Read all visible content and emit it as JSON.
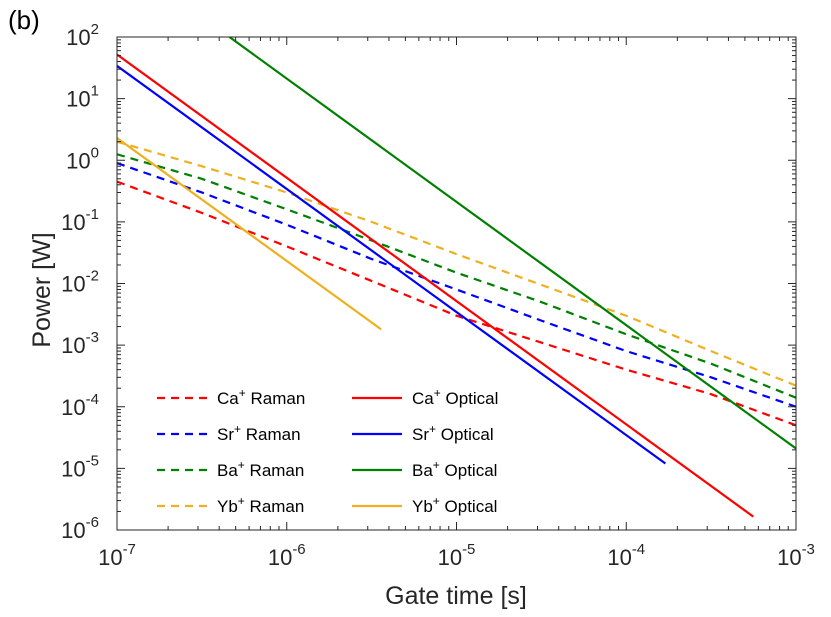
{
  "chart_data": {
    "type": "line",
    "panel_label": "(b)",
    "xlabel": "Gate time [s]",
    "ylabel": "Power [W]",
    "xscale": "log",
    "yscale": "log",
    "xlim": [
      1e-07,
      0.001
    ],
    "ylim": [
      1e-06,
      100
    ],
    "x_ticks": [
      {
        "base": "10",
        "exp": "-7",
        "value": 1e-07
      },
      {
        "base": "10",
        "exp": "-6",
        "value": 1e-06
      },
      {
        "base": "10",
        "exp": "-5",
        "value": 1e-05
      },
      {
        "base": "10",
        "exp": "-4",
        "value": 0.0001
      },
      {
        "base": "10",
        "exp": "-3",
        "value": 0.001
      }
    ],
    "y_ticks": [
      {
        "base": "10",
        "exp": "-6",
        "value": 1e-06
      },
      {
        "base": "10",
        "exp": "-5",
        "value": 1e-05
      },
      {
        "base": "10",
        "exp": "-4",
        "value": 0.0001
      },
      {
        "base": "10",
        "exp": "-3",
        "value": 0.001
      },
      {
        "base": "10",
        "exp": "-2",
        "value": 0.01
      },
      {
        "base": "10",
        "exp": "-1",
        "value": 0.1
      },
      {
        "base": "10",
        "exp": "0",
        "value": 1
      },
      {
        "base": "10",
        "exp": "1",
        "value": 10
      },
      {
        "base": "10",
        "exp": "2",
        "value": 100
      }
    ],
    "legend_position": "bottom-left",
    "series": [
      {
        "name": "Ca+ Raman",
        "ion": "Ca",
        "kind": "Raman",
        "color": "#ff0000",
        "style": "dashed",
        "x": [
          1e-07,
          3.16e-07,
          1e-06,
          3.16e-06,
          1e-05,
          3.16e-05,
          0.0001,
          0.000316,
          0.001
        ],
        "y": [
          0.45,
          0.14,
          0.04,
          0.011,
          0.003,
          0.0011,
          0.0004,
          0.00016,
          5e-05
        ]
      },
      {
        "name": "Sr+ Raman",
        "ion": "Sr",
        "kind": "Raman",
        "color": "#0000ff",
        "style": "dashed",
        "x": [
          1e-07,
          3.16e-07,
          1e-06,
          3.16e-06,
          1e-05,
          3.16e-05,
          0.0001,
          0.000316,
          0.001
        ],
        "y": [
          0.9,
          0.3,
          0.09,
          0.025,
          0.008,
          0.0025,
          0.0008,
          0.0003,
          0.0001
        ]
      },
      {
        "name": "Ba+ Raman",
        "ion": "Ba",
        "kind": "Raman",
        "color": "#008000",
        "style": "dashed",
        "x": [
          1e-07,
          3.16e-07,
          1e-06,
          3.16e-06,
          1e-05,
          3.16e-05,
          0.0001,
          0.000316,
          0.001
        ],
        "y": [
          1.25,
          0.5,
          0.16,
          0.05,
          0.015,
          0.005,
          0.0015,
          0.0005,
          0.00014
        ]
      },
      {
        "name": "Yb+ Raman",
        "ion": "Yb",
        "kind": "Raman",
        "color": "#edb120",
        "style": "dashed",
        "x": [
          1e-07,
          3.16e-07,
          1e-06,
          3.16e-06,
          1e-05,
          3.16e-05,
          0.0001,
          0.000316,
          0.001
        ],
        "y": [
          2.0,
          0.8,
          0.3,
          0.1,
          0.03,
          0.0095,
          0.003,
          0.0008,
          0.00022
        ]
      },
      {
        "name": "Ca+ Optical",
        "ion": "Ca",
        "kind": "Optical",
        "color": "#ff0000",
        "style": "solid",
        "x": [
          1e-07,
          0.00056
        ],
        "y": [
          52,
          1.65e-06
        ]
      },
      {
        "name": "Sr+ Optical",
        "ion": "Sr",
        "kind": "Optical",
        "color": "#0000ff",
        "style": "solid",
        "x": [
          1e-07,
          0.00017
        ],
        "y": [
          34,
          1.2e-05
        ]
      },
      {
        "name": "Ba+ Optical",
        "ion": "Ba",
        "kind": "Optical",
        "color": "#008000",
        "style": "solid",
        "x": [
          4.6e-07,
          0.001
        ],
        "y": [
          100,
          2.1e-05
        ]
      },
      {
        "name": "Yb+ Optical",
        "ion": "Yb",
        "kind": "Optical",
        "color": "#edb120",
        "style": "solid",
        "x": [
          1e-07,
          3.6e-06
        ],
        "y": [
          2.3,
          0.0018
        ]
      }
    ],
    "legend": [
      {
        "ion": "Ca",
        "sup": "+",
        "label": " Raman",
        "series": "Ca+ Raman"
      },
      {
        "ion": "Ca",
        "sup": "+",
        "label": " Optical",
        "series": "Ca+ Optical"
      },
      {
        "ion": "Sr",
        "sup": "+",
        "label": " Raman",
        "series": "Sr+ Raman"
      },
      {
        "ion": "Sr",
        "sup": "+",
        "label": " Optical",
        "series": "Sr+ Optical"
      },
      {
        "ion": "Ba",
        "sup": "+",
        "label": " Raman",
        "series": "Ba+ Raman"
      },
      {
        "ion": "Ba",
        "sup": "+",
        "label": " Optical",
        "series": "Ba+ Optical"
      },
      {
        "ion": "Yb",
        "sup": "+",
        "label": " Raman",
        "series": "Yb+ Raman"
      },
      {
        "ion": "Yb",
        "sup": "+",
        "label": " Optical",
        "series": "Yb+ Optical"
      }
    ]
  }
}
